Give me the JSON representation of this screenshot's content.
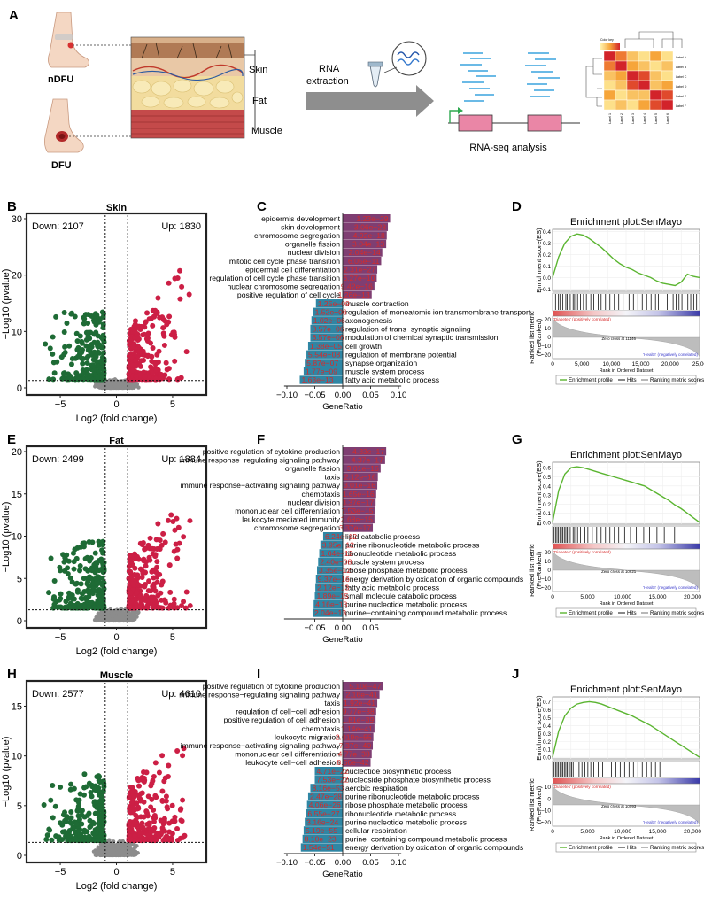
{
  "panelA": {
    "letter": "A",
    "foot_labels": [
      "nDFU",
      "DFU"
    ],
    "tissue_labels": [
      "Skin",
      "Fat",
      "Muscle"
    ],
    "arrow_label_1": "RNA",
    "arrow_label_2": "extraction",
    "analysis_label": "RNA-seq analysis",
    "heatmap_key": "Color key",
    "heatmap_rows": [
      "Label A",
      "Label B",
      "Label C",
      "Label D",
      "Label E",
      "Label F"
    ],
    "heatmap_cols": [
      "Label 1",
      "Label 2",
      "Label 3",
      "Label 4",
      "Label 5",
      "Label 6"
    ]
  },
  "rows": [
    {
      "volcano": {
        "letter": "B",
        "title": "Skin",
        "down": "Down: 2107",
        "up": "Up: 1830",
        "ylabel": "−Log10 (pvalue)",
        "xlabel": "Log2 (fold change)",
        "yticks": [
          "0",
          "10",
          "20",
          "30"
        ],
        "ymax": 30,
        "xticks": [
          "−5",
          "0",
          "5"
        ],
        "xlim": [
          -8,
          8
        ],
        "vlines": [
          -1,
          1
        ],
        "hline": 1.3,
        "down_color": "#1e6b35",
        "up_color": "#cc1f45",
        "ns_color": "#8c8c8c"
      },
      "go": {
        "letter": "C",
        "xlabel": "GeneRatio",
        "xticks": [
          "−0.10",
          "−0.05",
          "0.00",
          "0.05",
          "0.10"
        ],
        "up_color": "#7f3e72",
        "down_color": "#2f86a4",
        "up": [
          {
            "term": "epidermis development",
            "value": 0.085,
            "p": "1.23e−29"
          },
          {
            "term": "skin development",
            "value": 0.081,
            "p": "3.06e−28"
          },
          {
            "term": "chromosome segregation",
            "value": 0.079,
            "p": "4.92e−18"
          },
          {
            "term": "organelle fission",
            "value": 0.078,
            "p": "3.04e−13"
          },
          {
            "term": "nuclear division",
            "value": 0.071,
            "p": "2.04e−14"
          },
          {
            "term": "mitotic cell cycle phase transition",
            "value": 0.069,
            "p": "6.05e−11"
          },
          {
            "term": "epidermal cell differentiation",
            "value": 0.062,
            "p": "2.31e−27"
          },
          {
            "term": "regulation of cell cycle phase transition",
            "value": 0.061,
            "p": "6.27e−10"
          },
          {
            "term": "nuclear chromosome segregation",
            "value": 0.057,
            "p": "9.42e−16"
          },
          {
            "term": "positive regulation of cell cycle",
            "value": 0.052,
            "p": "1.26e−13"
          }
        ],
        "down": [
          {
            "term": "muscle contraction",
            "value": -0.048,
            "p": "1.25e−09"
          },
          {
            "term": "regulation of monoatomic ion transmembrane transport",
            "value": -0.053,
            "p": "1.52e−06"
          },
          {
            "term": "axonogenesis",
            "value": -0.056,
            "p": "1.02e−06"
          },
          {
            "term": "regulation of trans−synaptic signaling",
            "value": -0.058,
            "p": "8.57e−06"
          },
          {
            "term": "modulation of chemical synaptic transmission",
            "value": -0.058,
            "p": "8.57e−06"
          },
          {
            "term": "cell growth",
            "value": -0.062,
            "p": "1.38e−05"
          },
          {
            "term": "regulation of membrane potential",
            "value": -0.065,
            "p": "5.54e−08"
          },
          {
            "term": "synapse organization",
            "value": -0.068,
            "p": "5.87e−07"
          },
          {
            "term": "muscle system process",
            "value": -0.07,
            "p": "1.77e−09"
          },
          {
            "term": "fatty acid metabolic process",
            "value": -0.077,
            "p": "1.63e−13"
          }
        ]
      },
      "gsea": {
        "letter": "D",
        "title": "Enrichment plot:SenMayo",
        "es_label": "Enrichment score(ES)",
        "es_ticks": [
          "0.4",
          "0.3",
          "0.2",
          "0.1",
          "0.0",
          "−0.1"
        ],
        "es_values": [
          0.0,
          0.18,
          0.3,
          0.36,
          0.38,
          0.37,
          0.34,
          0.3,
          0.26,
          0.21,
          0.16,
          0.12,
          0.09,
          0.07,
          0.04,
          0.02,
          0.0,
          -0.03,
          -0.05,
          -0.06,
          -0.07,
          -0.04,
          0.03,
          0.01,
          0.0
        ],
        "es_range": [
          -0.12,
          0.42
        ],
        "hits": [
          0.02,
          0.04,
          0.05,
          0.07,
          0.09,
          0.1,
          0.12,
          0.14,
          0.15,
          0.17,
          0.19,
          0.21,
          0.23,
          0.26,
          0.28,
          0.31,
          0.33,
          0.36,
          0.39,
          0.42,
          0.45,
          0.48,
          0.52,
          0.55,
          0.58,
          0.61,
          0.64,
          0.67,
          0.7,
          0.72,
          0.78,
          0.82,
          0.84,
          0.86,
          0.88,
          0.9,
          0.92,
          0.94,
          0.96,
          0.98
        ],
        "pos_label": "'Diabetes' (positively correlated)",
        "neg_label": "'Health' (negatively correlated)",
        "zero_cross": "Zero cross at 11146",
        "metric_label_1": "Ranked list metric",
        "metric_label_2": "(PreRanked)",
        "metric_ticks": [
          "20",
          "10",
          "0",
          "−10",
          "−20"
        ],
        "xlabel": "Rank in Ordered Dataset",
        "xticks": [
          "0",
          "5,000",
          "10,000",
          "15,000",
          "20,000",
          "25,00"
        ],
        "legend": [
          "Enrichment profile",
          "Hits",
          "Ranking metric scores"
        ],
        "line_color": "#5bb531"
      }
    },
    {
      "volcano": {
        "letter": "E",
        "title": "Fat",
        "down": "Down: 2499",
        "up": "Up: 1884",
        "ylabel": "−Log10 (pvalue)",
        "xlabel": "Log2 (fold change)",
        "yticks": [
          "0",
          "5",
          "10",
          "15",
          "20"
        ],
        "ymax": 20,
        "xticks": [
          "−5",
          "0",
          "5"
        ],
        "xlim": [
          -8,
          8
        ],
        "vlines": [
          -1,
          1
        ],
        "hline": 1.3,
        "down_color": "#1e6b35",
        "up_color": "#cc1f45",
        "ns_color": "#8c8c8c"
      },
      "go": {
        "letter": "F",
        "xlabel": "GeneRatio",
        "xticks": [
          "−0.05",
          "0.00",
          "0.05"
        ],
        "up_color": "#7f3e72",
        "down_color": "#2f86a4",
        "up": [
          {
            "term": "positive regulation of cytokine production",
            "value": 0.078,
            "p": "4.33e−17"
          },
          {
            "term": "immune response−regulating signaling pathway",
            "value": 0.076,
            "p": "4.37e−17"
          },
          {
            "term": "organelle fission",
            "value": 0.068,
            "p": "3.01e−16"
          },
          {
            "term": "taxis",
            "value": 0.063,
            "p": "2.12e−16"
          },
          {
            "term": "immune response−activating signaling pathway",
            "value": 0.062,
            "p": "3.01e−16"
          },
          {
            "term": "chemotaxis",
            "value": 0.06,
            "p": "1.65e−16"
          },
          {
            "term": "nuclear division",
            "value": 0.059,
            "p": "3.37e−17"
          },
          {
            "term": "mononuclear cell differentiation",
            "value": 0.058,
            "p": "7.53e−15"
          },
          {
            "term": "leukocyte mediated immunity",
            "value": 0.057,
            "p": "2.68e−15"
          },
          {
            "term": "chromosome segregation",
            "value": 0.054,
            "p": "3.37e−17"
          }
        ],
        "down": [
          {
            "term": "lipid catabolic process",
            "value": -0.035,
            "p": "6.24e−12"
          },
          {
            "term": "purine ribonucleotide metabolic process",
            "value": -0.04,
            "p": "3.95e−12"
          },
          {
            "term": "ribonucleotide metabolic process",
            "value": -0.042,
            "p": "1.04e−12"
          },
          {
            "term": "muscle system process",
            "value": -0.044,
            "p": "2.40e−08"
          },
          {
            "term": "ribose phosphate metabolic process",
            "value": -0.046,
            "p": "3.35e−12"
          },
          {
            "term": "energy derivation by oxidation of organic compounds",
            "value": -0.048,
            "p": "9.37e−16"
          },
          {
            "term": "fatty acid metabolic process",
            "value": -0.049,
            "p": "2.12e−13"
          },
          {
            "term": "small molecule catabolic process",
            "value": -0.05,
            "p": "1.89e−15"
          },
          {
            "term": "purine nucleotide metabolic process",
            "value": -0.052,
            "p": "4.16e−13"
          },
          {
            "term": "purine−containing compound metabolic process",
            "value": -0.054,
            "p": "2.04e−13"
          }
        ]
      },
      "gsea": {
        "letter": "G",
        "title": "Enrichment plot:SenMayo",
        "es_label": "Enrichment score(ES)",
        "es_ticks": [
          "0.6",
          "0.5",
          "0.4",
          "0.3",
          "0.2",
          "0.1",
          "0.0"
        ],
        "es_values": [
          0.0,
          0.35,
          0.53,
          0.6,
          0.61,
          0.6,
          0.58,
          0.56,
          0.54,
          0.52,
          0.5,
          0.48,
          0.46,
          0.44,
          0.42,
          0.4,
          0.36,
          0.32,
          0.28,
          0.24,
          0.19,
          0.15,
          0.1,
          0.05,
          0.0
        ],
        "es_range": [
          -0.02,
          0.66
        ],
        "hits": [
          0.01,
          0.02,
          0.03,
          0.04,
          0.05,
          0.06,
          0.07,
          0.08,
          0.09,
          0.1,
          0.11,
          0.12,
          0.14,
          0.15,
          0.17,
          0.19,
          0.22,
          0.24,
          0.27,
          0.3,
          0.33,
          0.36,
          0.39,
          0.42,
          0.45,
          0.49,
          0.53,
          0.57,
          0.62,
          0.66,
          0.71,
          0.76,
          0.83
        ],
        "pos_label": "'Diabetes' (positively correlated)",
        "neg_label": "'Health' (negatively correlated)",
        "zero_cross": "Zero cross at 10621",
        "metric_label_1": "Ranked list metric",
        "metric_label_2": "(PreRanked)",
        "metric_ticks": [
          "20",
          "10",
          "0",
          "−10",
          "−20"
        ],
        "xlabel": "Rank in Ordered Dataset",
        "xticks": [
          "0",
          "5,000",
          "10,000",
          "15,000",
          "20,000"
        ],
        "legend": [
          "Enrichment profile",
          "Hits",
          "Ranking metric scores"
        ],
        "line_color": "#5bb531"
      }
    },
    {
      "volcano": {
        "letter": "H",
        "title": "Muscle",
        "down": "Down: 2577",
        "up": "Up: 4610",
        "ylabel": "−Log10 (pvalue)",
        "xlabel": "Log2 (fold change)",
        "yticks": [
          "0",
          "5",
          "10",
          "15"
        ],
        "ymax": 17,
        "xticks": [
          "−5",
          "0",
          "5"
        ],
        "xlim": [
          -8,
          8
        ],
        "vlines": [
          -1,
          1
        ],
        "hline": 1.3,
        "down_color": "#1e6b35",
        "up_color": "#cc1f45",
        "ns_color": "#8c8c8c"
      },
      "go": {
        "letter": "I",
        "xlabel": "GeneRatio",
        "xticks": [
          "−0.10",
          "−0.05",
          "0.00",
          "0.05",
          "0.10"
        ],
        "up_color": "#7f3e72",
        "down_color": "#2f86a4",
        "up": [
          {
            "term": "positive regulation of cytokine production",
            "value": 0.072,
            "p": "5.10e−47"
          },
          {
            "term": "immune response−regulating signaling pathway",
            "value": 0.066,
            "p": "2.16e−41"
          },
          {
            "term": "taxis",
            "value": 0.062,
            "p": "1.92e−41"
          },
          {
            "term": "regulation of cell−cell adhesion",
            "value": 0.06,
            "p": "9.77e−38"
          },
          {
            "term": "positive regulation of cell adhesion",
            "value": 0.059,
            "p": "1.81e−39"
          },
          {
            "term": "chemotaxis",
            "value": 0.057,
            "p": "1.14e−41"
          },
          {
            "term": "leukocyte migration",
            "value": 0.055,
            "p": "2.019e−55"
          },
          {
            "term": "immune response−activating signaling pathway",
            "value": 0.054,
            "p": "7.37e−40"
          },
          {
            "term": "mononuclear cell differentiation",
            "value": 0.052,
            "p": "4.77e−38"
          },
          {
            "term": "leukocyte cell−cell adhesion",
            "value": 0.05,
            "p": "8.56e−42"
          }
        ],
        "down": [
          {
            "term": "nucleotide biosynthetic process",
            "value": -0.05,
            "p": "4.71e−22"
          },
          {
            "term": "nucleoside phosphate biosynthetic process",
            "value": -0.05,
            "p": "7.53e−22"
          },
          {
            "term": "aerobic respiration",
            "value": -0.058,
            "p": "8.16e−53"
          },
          {
            "term": "purine ribonucleotide metabolic process",
            "value": -0.062,
            "p": "2.47e−28"
          },
          {
            "term": "ribose phosphate metabolic process",
            "value": -0.064,
            "p": "4.06e−26"
          },
          {
            "term": "ribonucleotide metabolic process",
            "value": -0.066,
            "p": "6.55e−27"
          },
          {
            "term": "purine nucleotide metabolic process",
            "value": -0.068,
            "p": "3.16e−24"
          },
          {
            "term": "cellular respiration",
            "value": -0.07,
            "p": "5.19e−55"
          },
          {
            "term": "purine−containing compound metabolic process",
            "value": -0.072,
            "p": "8.10e−23"
          },
          {
            "term": "energy derivation by oxidation of organic compounds",
            "value": -0.075,
            "p": "1.54e−51"
          }
        ]
      },
      "gsea": {
        "letter": "J",
        "title": "Enrichment plot:SenMayo",
        "es_label": "Enrichment score(ES)",
        "es_ticks": [
          "0.7",
          "0.6",
          "0.5",
          "0.4",
          "0.3",
          "0.2",
          "0.1",
          "0.0"
        ],
        "es_values": [
          0.0,
          0.33,
          0.52,
          0.62,
          0.67,
          0.69,
          0.7,
          0.69,
          0.67,
          0.64,
          0.61,
          0.58,
          0.55,
          0.52,
          0.48,
          0.44,
          0.4,
          0.35,
          0.3,
          0.25,
          0.2,
          0.15,
          0.1,
          0.05,
          0.0
        ],
        "es_range": [
          -0.02,
          0.76
        ],
        "hits": [
          0.01,
          0.02,
          0.03,
          0.04,
          0.05,
          0.06,
          0.07,
          0.08,
          0.09,
          0.1,
          0.11,
          0.12,
          0.13,
          0.14,
          0.16,
          0.18,
          0.2,
          0.22,
          0.24,
          0.26,
          0.28,
          0.31,
          0.34,
          0.37,
          0.4,
          0.43,
          0.46,
          0.49,
          0.52,
          0.55,
          0.58,
          0.61,
          0.64,
          0.67,
          0.7,
          0.73
        ],
        "pos_label": "'Diabetes' (positively correlated)",
        "neg_label": "'Health' (negatively correlated)",
        "zero_cross": "Zero cross at 10093",
        "metric_label_1": "Ranked list metric",
        "metric_label_2": "(PreRanked)",
        "metric_ticks": [
          "10",
          "0",
          "−10",
          "−20"
        ],
        "xlabel": "Rank in Ordered Dataset",
        "xticks": [
          "0",
          "5,000",
          "10,000",
          "15,000",
          "20,000"
        ],
        "legend": [
          "Enrichment profile",
          "Hits",
          "Ranking metric scores"
        ],
        "line_color": "#5bb531"
      }
    }
  ]
}
